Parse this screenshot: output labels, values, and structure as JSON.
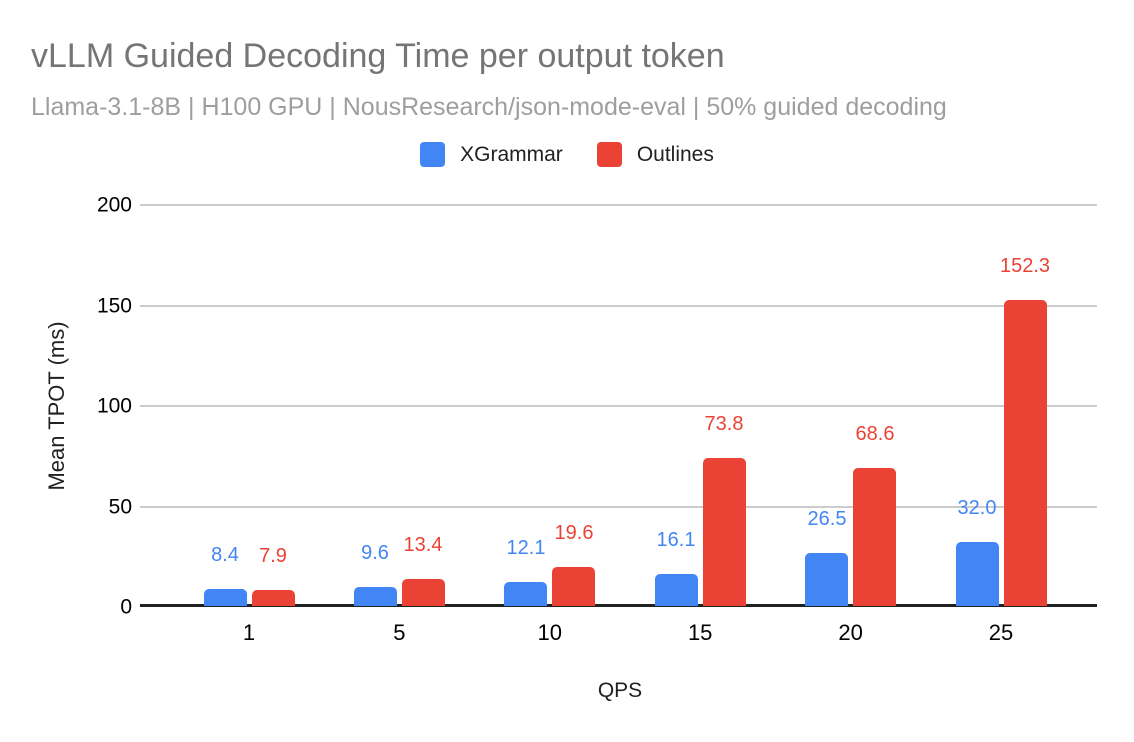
{
  "chart_data": {
    "type": "bar",
    "title": "vLLM Guided Decoding Time per output token",
    "subtitle": "Llama-3.1-8B | H100 GPU | NousResearch/json-mode-eval | 50% guided decoding",
    "xlabel": "QPS",
    "ylabel": "Mean TPOT (ms)",
    "categories": [
      "1",
      "5",
      "10",
      "15",
      "20",
      "25"
    ],
    "series": [
      {
        "name": "XGrammar",
        "color": "#4285f4",
        "values": [
          8.4,
          9.6,
          12.1,
          16.1,
          26.5,
          32.0
        ]
      },
      {
        "name": "Outlines",
        "color": "#ea4335",
        "values": [
          7.9,
          13.4,
          19.6,
          73.8,
          68.6,
          152.3
        ]
      }
    ],
    "ylim": [
      0,
      200
    ],
    "yticks": [
      0,
      50,
      100,
      150,
      200
    ],
    "grid": true,
    "legend_position": "top",
    "data_labels": "one-decimal",
    "title_color": "#757575",
    "subtitle_color": "#9e9e9e",
    "gridline_color": "#cccccc",
    "axis_line_color": "#212121",
    "tick_label_color": "#000000",
    "background_color": "#ffffff"
  }
}
